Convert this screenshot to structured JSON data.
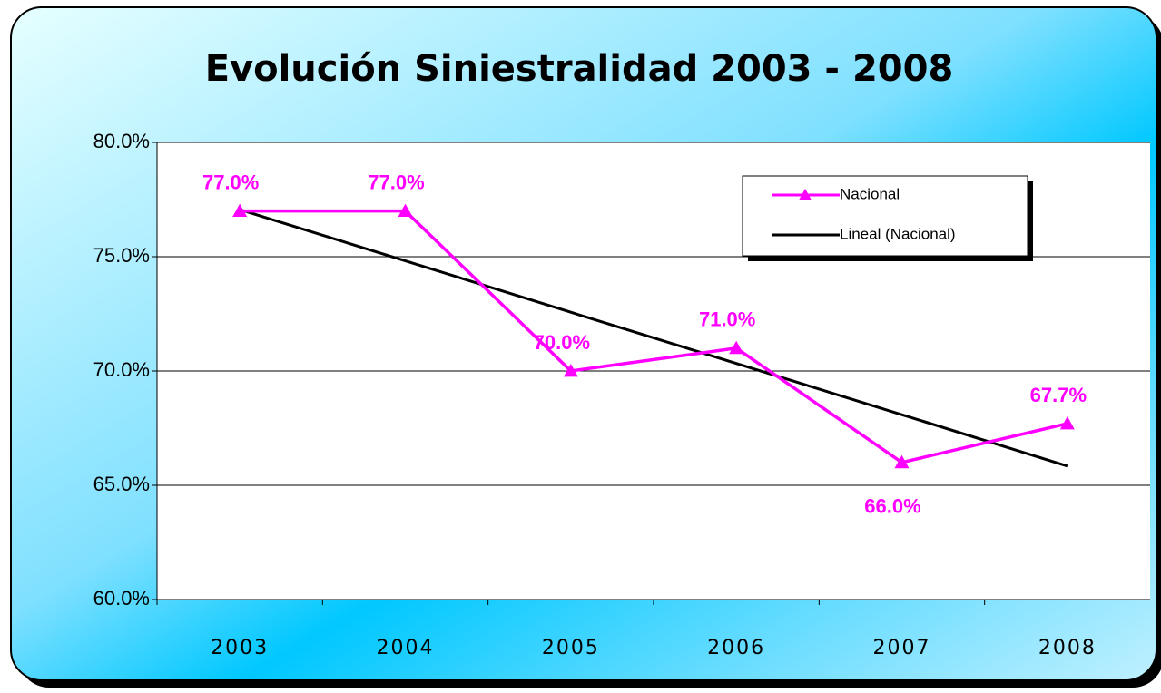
{
  "chart_data": {
    "type": "line",
    "title": "Evolución Siniestralidad 2003 -  2008",
    "categories": [
      "2003",
      "2004",
      "2005",
      "2006",
      "2007",
      "2008"
    ],
    "series": [
      {
        "name": "Nacional",
        "color": "#ff00ff",
        "values": [
          77,
          77,
          70,
          71,
          66,
          67.7
        ],
        "value_labels": [
          "77.0%",
          "77.0%",
          "70.0%",
          "71.0%",
          "66.0%",
          "67.7%"
        ],
        "marker": "triangle"
      },
      {
        "name": "Lineal (Nacional)",
        "color": "#000000",
        "values": [
          77.06,
          74.82,
          72.57,
          70.33,
          68.09,
          65.84
        ]
      }
    ],
    "ylim": [
      60,
      80
    ],
    "yticks": [
      {
        "value": 60,
        "label": "60.0%"
      },
      {
        "value": 65,
        "label": "65.0%"
      },
      {
        "value": 70,
        "label": "70.0%"
      },
      {
        "value": 75,
        "label": "75.0%"
      },
      {
        "value": 80,
        "label": "80.0%"
      }
    ],
    "grid": true
  }
}
